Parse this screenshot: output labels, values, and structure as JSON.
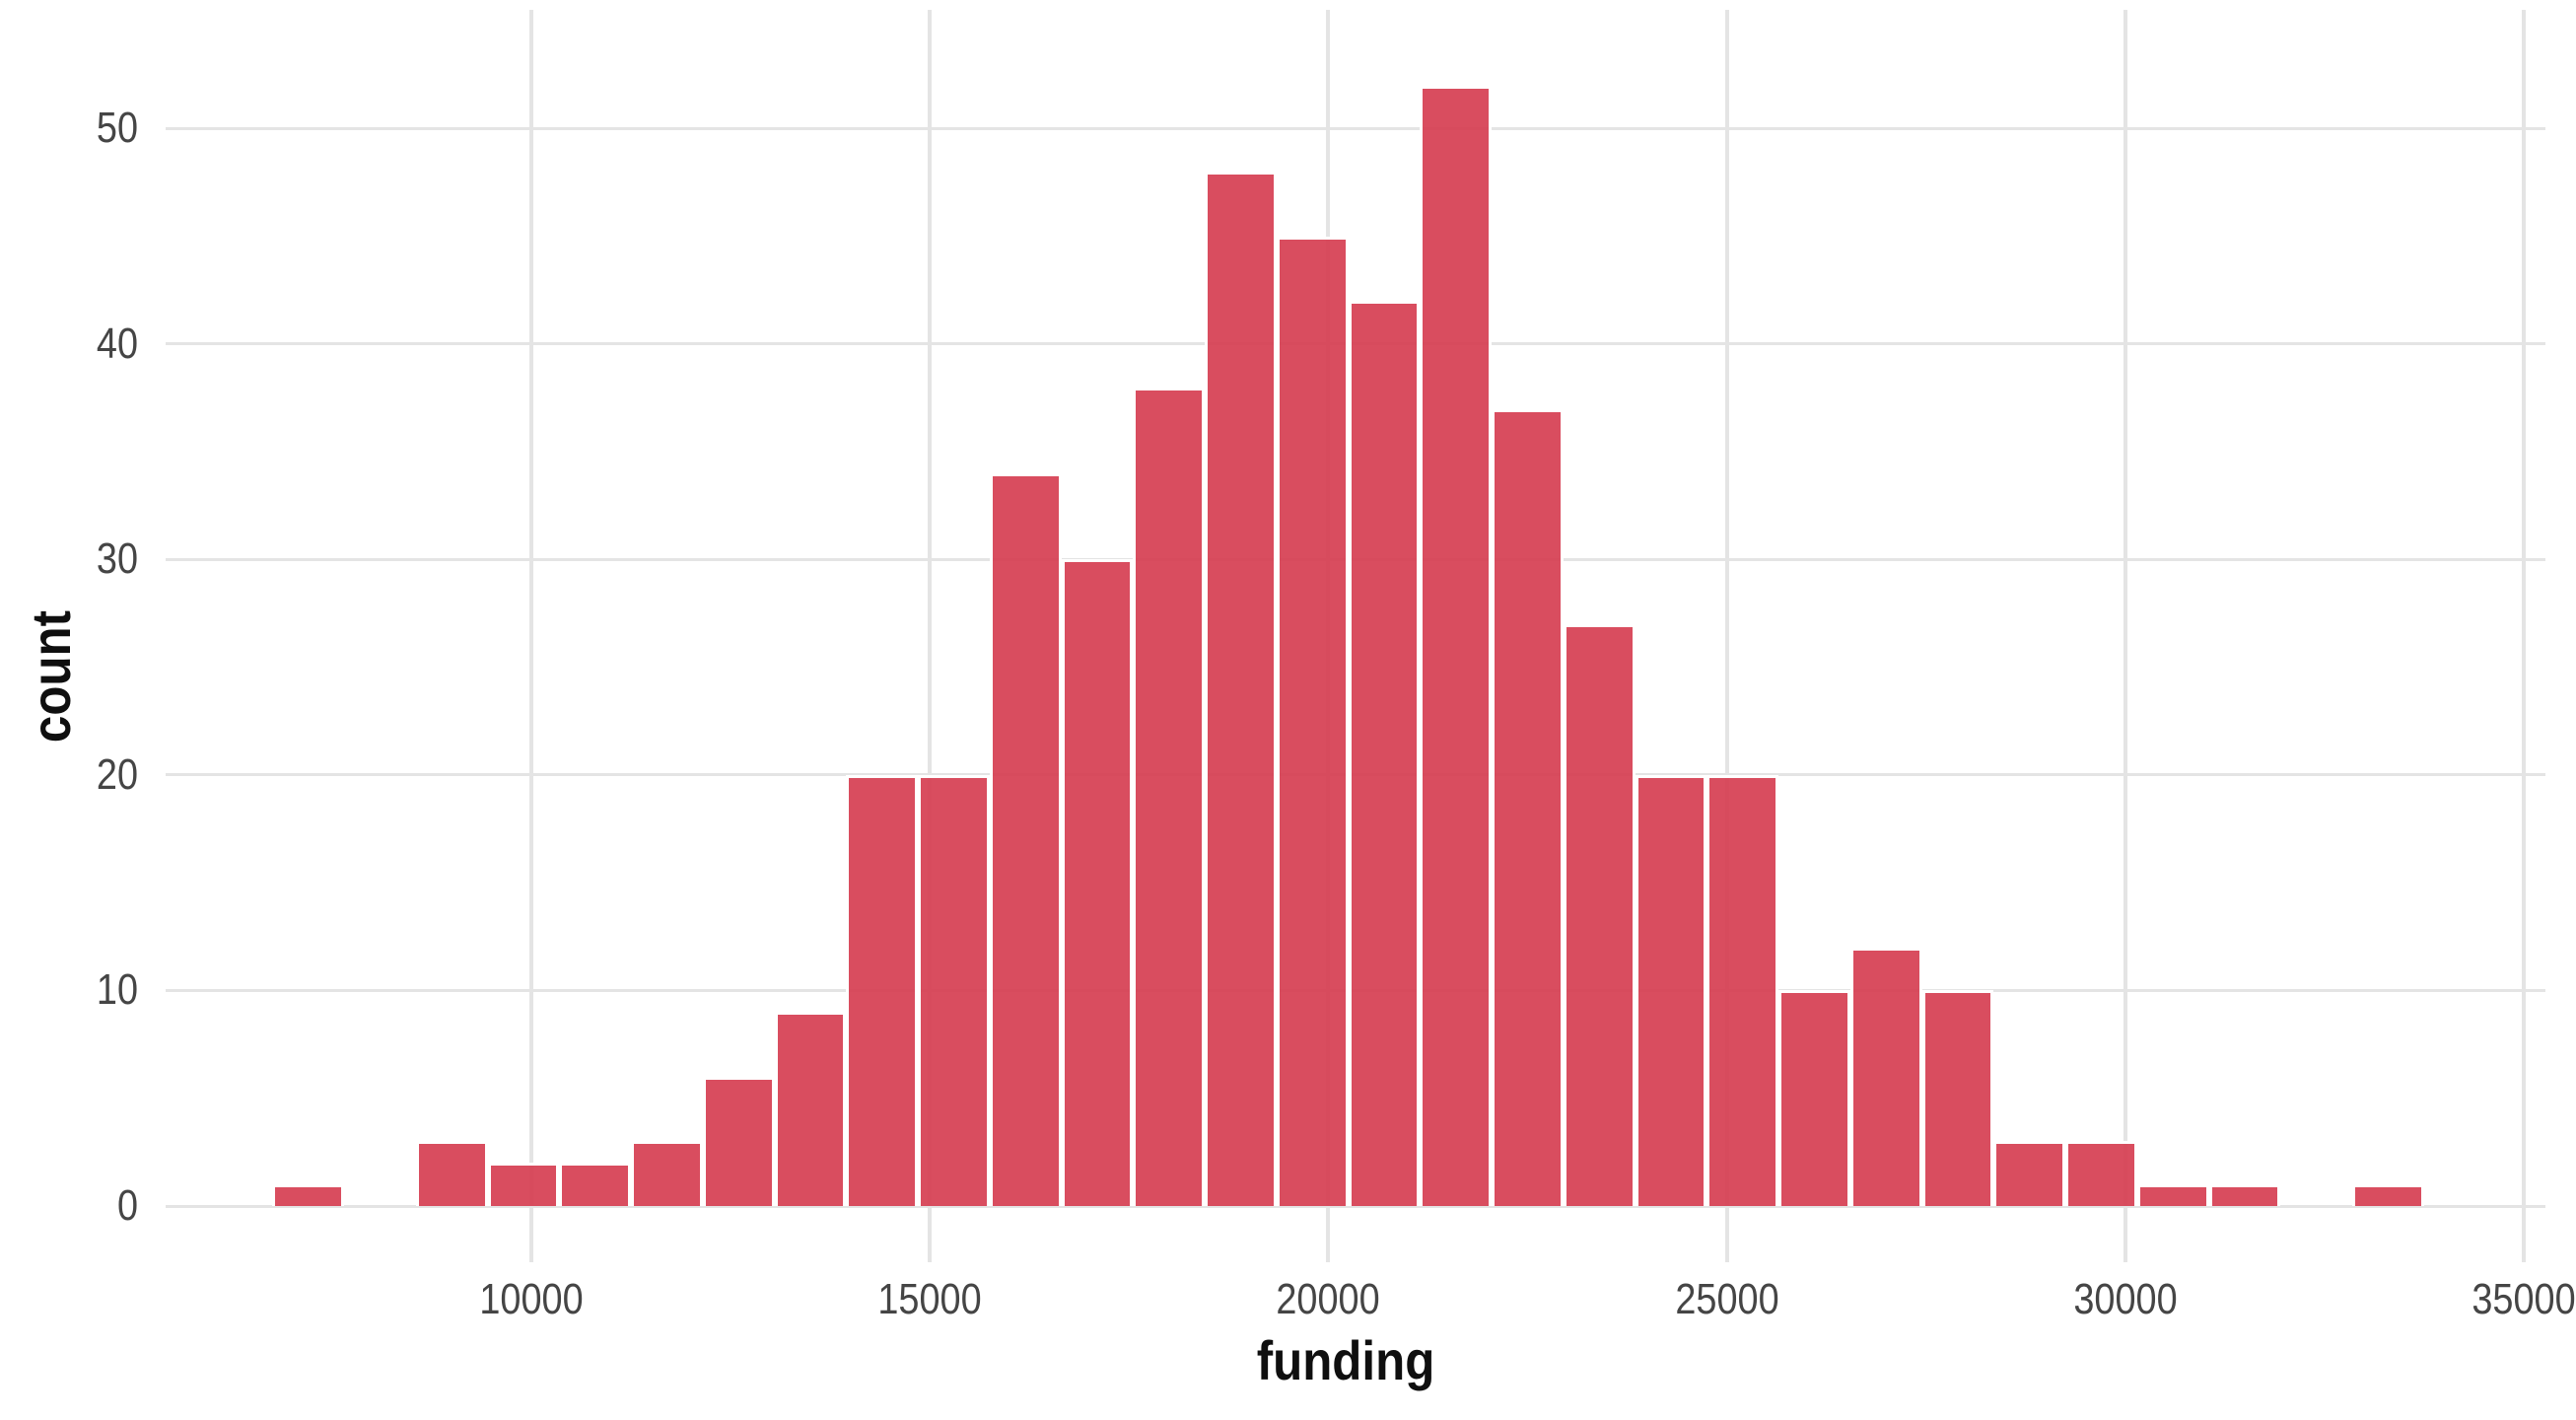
{
  "chart_data": {
    "type": "histogram",
    "title": "",
    "xlabel": "funding",
    "ylabel": "count",
    "binwidth": 900,
    "bin_centers": [
      7200,
      8100,
      9000,
      9900,
      10800,
      11700,
      12600,
      13500,
      14400,
      15300,
      16200,
      17100,
      18000,
      18900,
      19800,
      20700,
      21600,
      22500,
      23400,
      24300,
      25200,
      26100,
      27000,
      27900,
      28800,
      29700,
      30600,
      31500,
      32400,
      33300
    ],
    "counts": [
      1,
      0,
      3,
      2,
      2,
      3,
      6,
      9,
      20,
      20,
      34,
      30,
      38,
      48,
      45,
      42,
      52,
      37,
      27,
      20,
      20,
      10,
      12,
      10,
      3,
      3,
      1,
      1,
      0,
      1
    ],
    "total_n": 500,
    "x_ticks": [
      10000,
      15000,
      20000,
      25000,
      30000,
      35000
    ],
    "y_ticks": [
      0,
      10,
      20,
      30,
      40,
      50
    ],
    "xlim": [
      5411,
      35272
    ],
    "ylim": [
      0,
      55.97
    ],
    "grid": "major-only",
    "legend": "none",
    "colors": {
      "bar_fill_rgba": "rgba(213,58,78,0.9)",
      "bar_fill_hex": "#D94E60",
      "bar_border": "#FFFFFF",
      "grid": "#E4E4E4",
      "tick_label": "#454545",
      "axis_title": "#0F0F0F",
      "background": "#FFFFFF"
    }
  }
}
